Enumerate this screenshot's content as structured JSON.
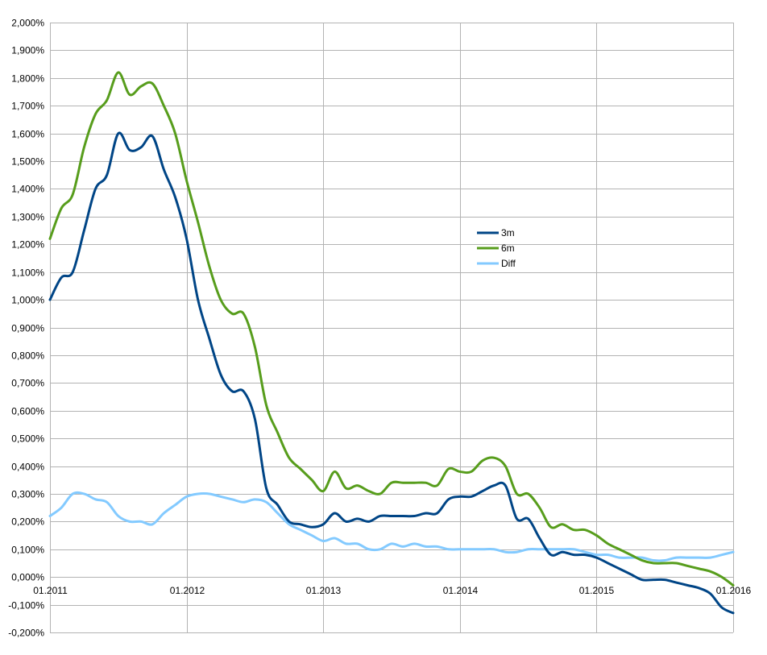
{
  "chart_data": {
    "type": "line",
    "title": "",
    "xlabel": "",
    "ylabel": "",
    "x_ticks": [
      "01.2011",
      "01.2012",
      "01.2013",
      "01.2014",
      "01.2015",
      "01.2016"
    ],
    "x_range": [
      "2011-01",
      "2016-01"
    ],
    "y_ticks": [
      "-0,200%",
      "-0,100%",
      "0,000%",
      "0,100%",
      "0,200%",
      "0,300%",
      "0,400%",
      "0,500%",
      "0,600%",
      "0,700%",
      "0,800%",
      "0,900%",
      "1,000%",
      "1,100%",
      "1,200%",
      "1,300%",
      "1,400%",
      "1,500%",
      "1,600%",
      "1,700%",
      "1,800%",
      "1,900%",
      "2,000%"
    ],
    "ylim": [
      -0.2,
      2.0
    ],
    "y_unit": "%",
    "grid": true,
    "legend_position": "right",
    "series": [
      {
        "name": "3m",
        "color": "#004586",
        "points": [
          [
            "2011-01",
            1.0
          ],
          [
            "2011-02",
            1.08
          ],
          [
            "2011-03",
            1.1
          ],
          [
            "2011-04",
            1.25
          ],
          [
            "2011-05",
            1.4
          ],
          [
            "2011-06",
            1.45
          ],
          [
            "2011-07",
            1.6
          ],
          [
            "2011-08",
            1.54
          ],
          [
            "2011-09",
            1.55
          ],
          [
            "2011-10",
            1.59
          ],
          [
            "2011-11",
            1.47
          ],
          [
            "2011-12",
            1.37
          ],
          [
            "2012-01",
            1.22
          ],
          [
            "2012-02",
            1.0
          ],
          [
            "2012-03",
            0.86
          ],
          [
            "2012-04",
            0.73
          ],
          [
            "2012-05",
            0.67
          ],
          [
            "2012-06",
            0.67
          ],
          [
            "2012-07",
            0.57
          ],
          [
            "2012-08",
            0.32
          ],
          [
            "2012-09",
            0.26
          ],
          [
            "2012-10",
            0.2
          ],
          [
            "2012-11",
            0.19
          ],
          [
            "2012-12",
            0.18
          ],
          [
            "2013-01",
            0.19
          ],
          [
            "2013-02",
            0.23
          ],
          [
            "2013-03",
            0.2
          ],
          [
            "2013-04",
            0.21
          ],
          [
            "2013-05",
            0.2
          ],
          [
            "2013-06",
            0.22
          ],
          [
            "2013-07",
            0.22
          ],
          [
            "2013-08",
            0.22
          ],
          [
            "2013-09",
            0.22
          ],
          [
            "2013-10",
            0.23
          ],
          [
            "2013-11",
            0.23
          ],
          [
            "2013-12",
            0.28
          ],
          [
            "2014-01",
            0.29
          ],
          [
            "2014-02",
            0.29
          ],
          [
            "2014-03",
            0.31
          ],
          [
            "2014-04",
            0.33
          ],
          [
            "2014-05",
            0.33
          ],
          [
            "2014-06",
            0.21
          ],
          [
            "2014-07",
            0.21
          ],
          [
            "2014-08",
            0.14
          ],
          [
            "2014-09",
            0.08
          ],
          [
            "2014-10",
            0.09
          ],
          [
            "2014-11",
            0.08
          ],
          [
            "2014-12",
            0.08
          ],
          [
            "2015-01",
            0.07
          ],
          [
            "2015-02",
            0.05
          ],
          [
            "2015-03",
            0.03
          ],
          [
            "2015-04",
            0.01
          ],
          [
            "2015-05",
            -0.01
          ],
          [
            "2015-06",
            -0.01
          ],
          [
            "2015-07",
            -0.01
          ],
          [
            "2015-08",
            -0.02
          ],
          [
            "2015-09",
            -0.03
          ],
          [
            "2015-10",
            -0.04
          ],
          [
            "2015-11",
            -0.06
          ],
          [
            "2015-12",
            -0.11
          ],
          [
            "2016-01",
            -0.13
          ]
        ]
      },
      {
        "name": "6m",
        "color": "#579d1c",
        "points": [
          [
            "2011-01",
            1.22
          ],
          [
            "2011-02",
            1.33
          ],
          [
            "2011-03",
            1.38
          ],
          [
            "2011-04",
            1.55
          ],
          [
            "2011-05",
            1.67
          ],
          [
            "2011-06",
            1.72
          ],
          [
            "2011-07",
            1.82
          ],
          [
            "2011-08",
            1.74
          ],
          [
            "2011-09",
            1.77
          ],
          [
            "2011-10",
            1.78
          ],
          [
            "2011-11",
            1.7
          ],
          [
            "2011-12",
            1.6
          ],
          [
            "2012-01",
            1.43
          ],
          [
            "2012-02",
            1.28
          ],
          [
            "2012-03",
            1.12
          ],
          [
            "2012-04",
            1.0
          ],
          [
            "2012-05",
            0.95
          ],
          [
            "2012-06",
            0.95
          ],
          [
            "2012-07",
            0.83
          ],
          [
            "2012-08",
            0.62
          ],
          [
            "2012-09",
            0.52
          ],
          [
            "2012-10",
            0.43
          ],
          [
            "2012-11",
            0.39
          ],
          [
            "2012-12",
            0.35
          ],
          [
            "2013-01",
            0.31
          ],
          [
            "2013-02",
            0.38
          ],
          [
            "2013-03",
            0.32
          ],
          [
            "2013-04",
            0.33
          ],
          [
            "2013-05",
            0.31
          ],
          [
            "2013-06",
            0.3
          ],
          [
            "2013-07",
            0.34
          ],
          [
            "2013-08",
            0.34
          ],
          [
            "2013-09",
            0.34
          ],
          [
            "2013-10",
            0.34
          ],
          [
            "2013-11",
            0.33
          ],
          [
            "2013-12",
            0.39
          ],
          [
            "2014-01",
            0.38
          ],
          [
            "2014-02",
            0.38
          ],
          [
            "2014-03",
            0.42
          ],
          [
            "2014-04",
            0.43
          ],
          [
            "2014-05",
            0.4
          ],
          [
            "2014-06",
            0.3
          ],
          [
            "2014-07",
            0.3
          ],
          [
            "2014-08",
            0.25
          ],
          [
            "2014-09",
            0.18
          ],
          [
            "2014-10",
            0.19
          ],
          [
            "2014-11",
            0.17
          ],
          [
            "2014-12",
            0.17
          ],
          [
            "2015-01",
            0.15
          ],
          [
            "2015-02",
            0.12
          ],
          [
            "2015-03",
            0.1
          ],
          [
            "2015-04",
            0.08
          ],
          [
            "2015-05",
            0.06
          ],
          [
            "2015-06",
            0.05
          ],
          [
            "2015-07",
            0.05
          ],
          [
            "2015-08",
            0.05
          ],
          [
            "2015-09",
            0.04
          ],
          [
            "2015-10",
            0.03
          ],
          [
            "2015-11",
            0.02
          ],
          [
            "2015-12",
            0.0
          ],
          [
            "2016-01",
            -0.03
          ]
        ]
      },
      {
        "name": "Diff",
        "color": "#83caff",
        "points": [
          [
            "2011-01",
            0.22
          ],
          [
            "2011-02",
            0.25
          ],
          [
            "2011-03",
            0.3
          ],
          [
            "2011-04",
            0.3
          ],
          [
            "2011-05",
            0.28
          ],
          [
            "2011-06",
            0.27
          ],
          [
            "2011-07",
            0.22
          ],
          [
            "2011-08",
            0.2
          ],
          [
            "2011-09",
            0.2
          ],
          [
            "2011-10",
            0.19
          ],
          [
            "2011-11",
            0.23
          ],
          [
            "2011-12",
            0.26
          ],
          [
            "2012-01",
            0.29
          ],
          [
            "2012-02",
            0.3
          ],
          [
            "2012-03",
            0.3
          ],
          [
            "2012-04",
            0.29
          ],
          [
            "2012-05",
            0.28
          ],
          [
            "2012-06",
            0.27
          ],
          [
            "2012-07",
            0.28
          ],
          [
            "2012-08",
            0.27
          ],
          [
            "2012-09",
            0.23
          ],
          [
            "2012-10",
            0.19
          ],
          [
            "2012-11",
            0.17
          ],
          [
            "2012-12",
            0.15
          ],
          [
            "2013-01",
            0.13
          ],
          [
            "2013-02",
            0.14
          ],
          [
            "2013-03",
            0.12
          ],
          [
            "2013-04",
            0.12
          ],
          [
            "2013-05",
            0.1
          ],
          [
            "2013-06",
            0.1
          ],
          [
            "2013-07",
            0.12
          ],
          [
            "2013-08",
            0.11
          ],
          [
            "2013-09",
            0.12
          ],
          [
            "2013-10",
            0.11
          ],
          [
            "2013-11",
            0.11
          ],
          [
            "2013-12",
            0.1
          ],
          [
            "2014-01",
            0.1
          ],
          [
            "2014-02",
            0.1
          ],
          [
            "2014-03",
            0.1
          ],
          [
            "2014-04",
            0.1
          ],
          [
            "2014-05",
            0.09
          ],
          [
            "2014-06",
            0.09
          ],
          [
            "2014-07",
            0.1
          ],
          [
            "2014-08",
            0.1
          ],
          [
            "2014-09",
            0.1
          ],
          [
            "2014-10",
            0.1
          ],
          [
            "2014-11",
            0.1
          ],
          [
            "2014-12",
            0.09
          ],
          [
            "2015-01",
            0.08
          ],
          [
            "2015-02",
            0.08
          ],
          [
            "2015-03",
            0.07
          ],
          [
            "2015-04",
            0.07
          ],
          [
            "2015-05",
            0.07
          ],
          [
            "2015-06",
            0.06
          ],
          [
            "2015-07",
            0.06
          ],
          [
            "2015-08",
            0.07
          ],
          [
            "2015-09",
            0.07
          ],
          [
            "2015-10",
            0.07
          ],
          [
            "2015-11",
            0.07
          ],
          [
            "2015-12",
            0.08
          ],
          [
            "2016-01",
            0.09
          ]
        ]
      }
    ]
  }
}
